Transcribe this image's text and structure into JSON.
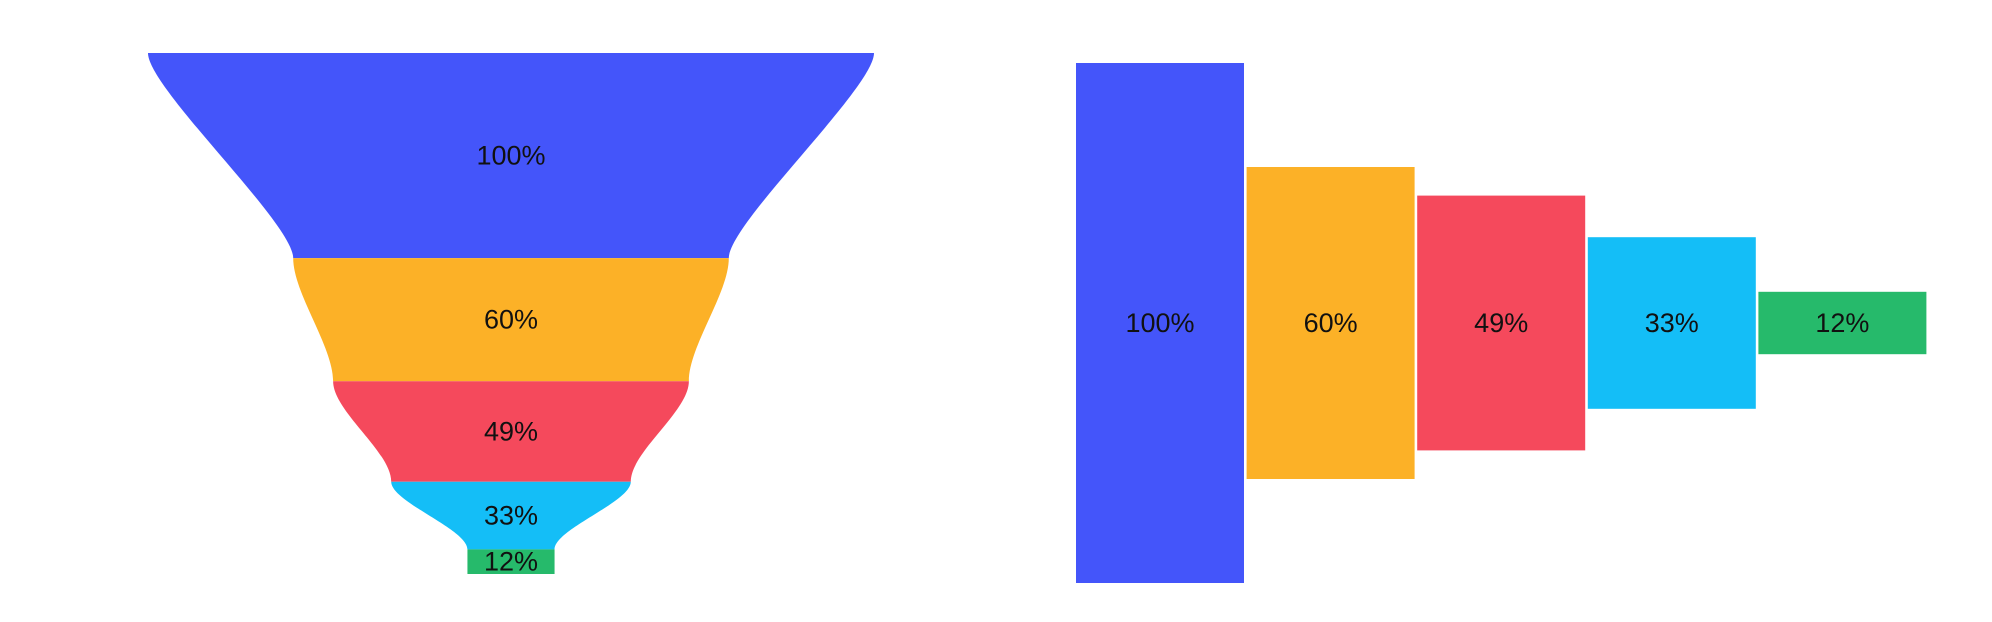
{
  "page": {
    "background_color": "#ffffff",
    "label_text_color": "#111111"
  },
  "chart_data": [
    {
      "type": "funnel",
      "orientation": "vertical",
      "title": "",
      "grid": false,
      "legend": false,
      "stages": [
        {
          "label": "100%",
          "value": 100,
          "color": "#4455FA"
        },
        {
          "label": "60%",
          "value": 60,
          "color": "#FCB127"
        },
        {
          "label": "49%",
          "value": 49,
          "color": "#F5495C"
        },
        {
          "label": "33%",
          "value": 33,
          "color": "#14BEF7"
        },
        {
          "label": "12%",
          "value": 12,
          "color": "#26BA6B"
        }
      ],
      "notes": "Funnel narrows top to bottom; segment heights and widths proportional to value; last stage is a flat rectangle; data labels centered in each segment."
    },
    {
      "type": "bar",
      "subtype": "centered-horizontal-step-funnel",
      "title": "",
      "grid": false,
      "legend": false,
      "categories": [
        "100%",
        "60%",
        "49%",
        "33%",
        "12%"
      ],
      "values": [
        100,
        60,
        49,
        33,
        12
      ],
      "colors": [
        "#4455FA",
        "#FCB127",
        "#F5495C",
        "#14BEF7",
        "#26BA6B"
      ],
      "data_labels": [
        "100%",
        "60%",
        "49%",
        "33%",
        "12%"
      ],
      "ylim": [
        0,
        100
      ],
      "notes": "Adjacent vertical bars, all centered on a shared horizontal midline; bar height proportional to value; data labels centered in each bar."
    }
  ]
}
